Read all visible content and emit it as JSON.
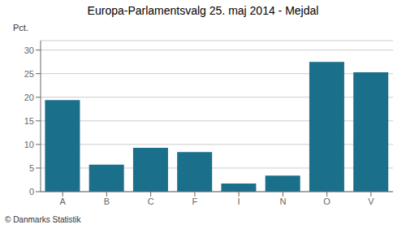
{
  "chart_data": {
    "type": "bar",
    "title": "Europa-Parlamentsvalg 25. maj 2014 - Mejdal",
    "categories": [
      "A",
      "B",
      "C",
      "F",
      "I",
      "N",
      "O",
      "V"
    ],
    "values": [
      19.4,
      5.7,
      9.3,
      8.4,
      1.7,
      3.4,
      27.5,
      25.3
    ],
    "color": "#1a6f8a",
    "y_label": "Pct.",
    "footer": "© Danmarks Statistik",
    "ylim": [
      0,
      32
    ],
    "yticks": [
      0,
      5,
      10,
      15,
      20,
      25,
      30
    ],
    "grid": true
  }
}
